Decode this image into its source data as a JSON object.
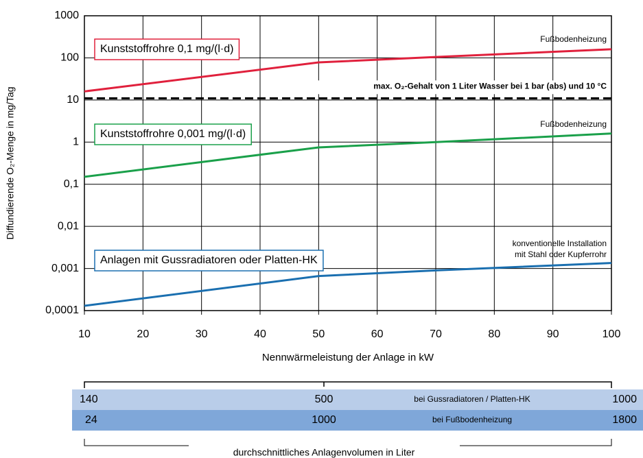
{
  "chart_data": {
    "type": "line",
    "y_label": "Diffundierende O₂-Menge in mg/Tag",
    "x_label": "Nennwärmeleistung der Anlage in kW",
    "x": [
      10,
      50,
      70,
      100
    ],
    "series": [
      {
        "name": "Kunststoffrohre 0,1 mg/(l·d)",
        "color": "#e0203c",
        "values": [
          16,
          78,
          105,
          160
        ]
      },
      {
        "name": "Kunststoffrohre 0,001 mg/(l·d)",
        "color": "#1aa04a",
        "values": [
          0.15,
          0.75,
          1.0,
          1.6
        ]
      },
      {
        "name": "Anlagen mit Gussradiatoren oder Platten-HK",
        "color": "#1a6fb0",
        "values": [
          0.00013,
          0.00066,
          0.0009,
          0.00135
        ]
      }
    ],
    "reference_line": {
      "value": 11,
      "label": "max. O₂-Gehalt von 1 Liter Wasser bei 1 bar (abs) und 10 °C"
    },
    "annotations": [
      "Fußbodenheizung",
      "Fußbodenheizung",
      "konventionelle Installation",
      "mit Stahl oder Kupferrohr"
    ],
    "xlim": [
      10,
      100
    ],
    "xticks": [
      10,
      20,
      30,
      40,
      50,
      60,
      70,
      80,
      90,
      100
    ],
    "ylim": [
      0.0001,
      1000
    ],
    "log_y": true,
    "grid": true,
    "yticks": [
      {
        "value": 0.0001,
        "label": "0,0001"
      },
      {
        "value": 0.001,
        "label": "0,001"
      },
      {
        "value": 0.01,
        "label": "0,01"
      },
      {
        "value": 0.1,
        "label": "0,1"
      },
      1,
      10,
      100,
      1000
    ]
  },
  "volume_table": {
    "rows": [
      [
        "140",
        "500",
        "bei Gussradiatoren / Platten-HK",
        "1000"
      ],
      [
        "24",
        "1000",
        "bei Fußbodenheizung",
        "1800"
      ]
    ],
    "caption": "durchschnittliches Anlagenvolumen in Liter"
  }
}
